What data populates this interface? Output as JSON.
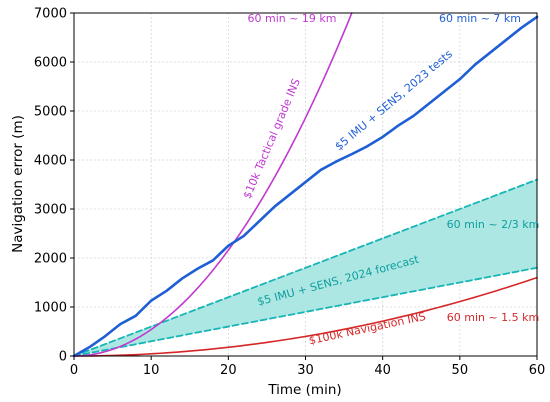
{
  "chart_data": {
    "type": "line",
    "xlabel": "Time (min)",
    "ylabel": "Navigation error (m)",
    "xlim": [
      0,
      60
    ],
    "ylim": [
      0,
      7000
    ],
    "xticks": [
      0,
      10,
      20,
      30,
      40,
      50,
      60
    ],
    "yticks": [
      0,
      1000,
      2000,
      3000,
      4000,
      5000,
      6000,
      7000
    ],
    "grid": true,
    "series": [
      {
        "name": "$5 IMU + SENS, 2023 tests",
        "color": "#1f5fd6",
        "style": "solid",
        "x": [
          0,
          2,
          4,
          6,
          8,
          10,
          12,
          14,
          16,
          18,
          20,
          22,
          24,
          26,
          28,
          30,
          32,
          34,
          36,
          38,
          40,
          42,
          44,
          46,
          48,
          50,
          52,
          54,
          56,
          58,
          60
        ],
        "y": [
          0,
          180,
          400,
          650,
          820,
          1130,
          1330,
          1580,
          1780,
          1950,
          2250,
          2450,
          2750,
          3050,
          3300,
          3550,
          3800,
          3970,
          4120,
          4280,
          4470,
          4700,
          4900,
          5150,
          5400,
          5650,
          5950,
          6200,
          6450,
          6700,
          6920
        ]
      },
      {
        "name": "$10k Tactical grade INS",
        "color": "#c03ad0",
        "style": "solid",
        "x": [
          0,
          5,
          10,
          15,
          20,
          25,
          30,
          33,
          36
        ],
        "y": [
          0,
          130,
          540,
          1220,
          2160,
          3380,
          4870,
          5890,
          7000
        ]
      },
      {
        "name": "$100k Navigation INS",
        "color": "#d62728",
        "style": "solid",
        "x": [
          0,
          10,
          20,
          30,
          40,
          50,
          60
        ],
        "y": [
          0,
          44,
          178,
          400,
          711,
          1111,
          1600
        ]
      },
      {
        "name": "$5 IMU + SENS, 2024 forecast (upper)",
        "color": "#17b5b5",
        "style": "dashed",
        "x": [
          0,
          60
        ],
        "y": [
          0,
          3600
        ]
      },
      {
        "name": "$5 IMU + SENS, 2024 forecast (lower)",
        "color": "#17b5b5",
        "style": "dashed",
        "x": [
          0,
          60
        ],
        "y": [
          0,
          1800
        ]
      }
    ],
    "band_fill": "#a8e6e2",
    "annotations": [
      {
        "text": "60 min ~ 19 km",
        "color": "#c03ad0"
      },
      {
        "text": "60 min ~ 7 km",
        "color": "#1f5fd6"
      },
      {
        "text": "$5 IMU + SENS, 2023 tests",
        "color": "#1f5fd6"
      },
      {
        "text": "$10k Tactical grade INS",
        "color": "#c03ad0"
      },
      {
        "text": "60 min ~ 2/3 km",
        "color": "#0f9e9e"
      },
      {
        "text": "$5 IMU + SENS, 2024 forecast",
        "color": "#0f9e9e"
      },
      {
        "text": "60 min ~ 1.5 km",
        "color": "#d62728"
      },
      {
        "text": "$100k Navigation INS",
        "color": "#d62728"
      }
    ]
  }
}
